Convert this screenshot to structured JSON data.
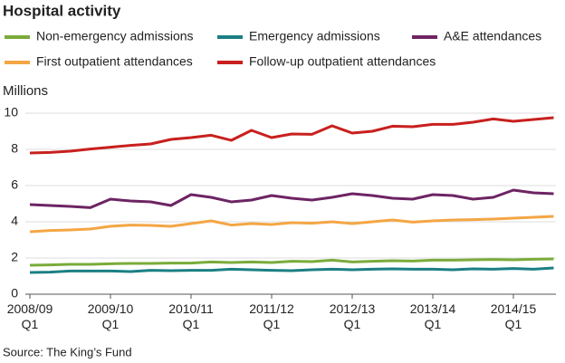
{
  "chart_data": {
    "type": "line",
    "title": "Hospital activity",
    "y_label": "Millions",
    "source": "Source: The King’s Fund",
    "categories": [
      "2008/09\nQ1",
      null,
      null,
      null,
      "2009/10\nQ1",
      null,
      null,
      null,
      "2010/11\nQ1",
      null,
      null,
      null,
      "2011/12\nQ1",
      null,
      null,
      null,
      "2012/13\nQ1",
      null,
      null,
      null,
      "2013/14\nQ1",
      null,
      null,
      null,
      "2014/15\nQ1",
      null,
      null
    ],
    "series": [
      {
        "name": "Non-emergency admissions",
        "color": "#7aab3a",
        "values": [
          1.6,
          1.62,
          1.65,
          1.65,
          1.68,
          1.7,
          1.7,
          1.72,
          1.72,
          1.78,
          1.75,
          1.78,
          1.75,
          1.82,
          1.8,
          1.88,
          1.78,
          1.82,
          1.85,
          1.83,
          1.88,
          1.88,
          1.9,
          1.92,
          1.9,
          1.93,
          1.95
        ]
      },
      {
        "name": "Emergency admissions",
        "color": "#1b7f84",
        "values": [
          1.2,
          1.22,
          1.28,
          1.28,
          1.28,
          1.25,
          1.32,
          1.3,
          1.32,
          1.32,
          1.38,
          1.35,
          1.32,
          1.3,
          1.35,
          1.38,
          1.35,
          1.38,
          1.4,
          1.38,
          1.38,
          1.35,
          1.4,
          1.38,
          1.42,
          1.38,
          1.45
        ]
      },
      {
        "name": "A&E attendances",
        "color": "#6d2463",
        "values": [
          4.95,
          4.9,
          4.85,
          4.78,
          5.25,
          5.15,
          5.1,
          4.9,
          5.5,
          5.35,
          5.1,
          5.2,
          5.45,
          5.3,
          5.2,
          5.35,
          5.55,
          5.45,
          5.3,
          5.25,
          5.5,
          5.45,
          5.25,
          5.35,
          5.75,
          5.6,
          5.55
        ]
      },
      {
        "name": "First outpatient attendances",
        "color": "#f4a644",
        "values": [
          3.45,
          3.52,
          3.55,
          3.6,
          3.75,
          3.82,
          3.8,
          3.75,
          3.9,
          4.05,
          3.82,
          3.9,
          3.85,
          3.95,
          3.92,
          4.0,
          3.9,
          4.0,
          4.1,
          3.98,
          4.05,
          4.1,
          4.12,
          4.15,
          4.2,
          4.25,
          4.3
        ]
      },
      {
        "name": "Follow-up outpatient attendances",
        "color": "#c8201e",
        "values": [
          7.8,
          7.83,
          7.9,
          8.02,
          8.12,
          8.22,
          8.3,
          8.55,
          8.65,
          8.78,
          8.5,
          9.05,
          8.65,
          8.85,
          8.83,
          9.3,
          8.9,
          9.0,
          9.28,
          9.25,
          9.38,
          9.38,
          9.5,
          9.68,
          9.55,
          9.65,
          9.75
        ]
      }
    ],
    "ylim": [
      0,
      10
    ],
    "yticks": [
      0,
      2,
      4,
      6,
      8,
      10
    ],
    "grid": true
  }
}
